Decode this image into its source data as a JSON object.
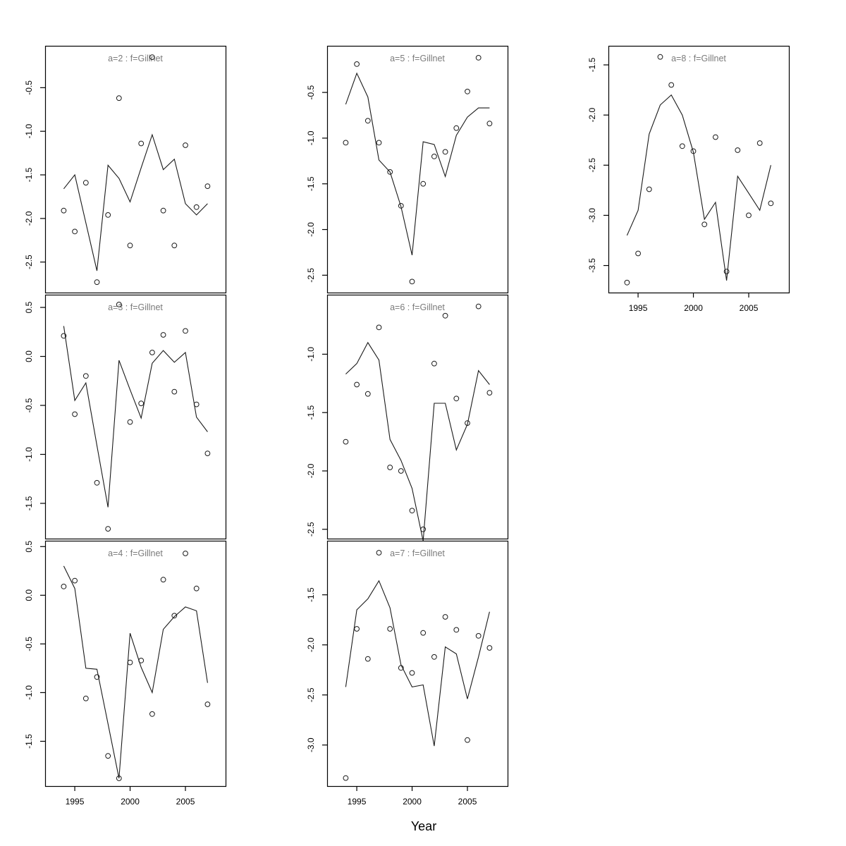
{
  "figure": {
    "background": "#ffffff",
    "title_color": "#7b7b7b",
    "line_color": "#1a1a1a",
    "point_color": "#1a1a1a",
    "axis_color": "#000000"
  },
  "chart_data": {
    "type": "line",
    "description": "3x3 grid of 7 panels comparing observed index (open circles) with fitted values (line) per age class for fleet Gillnet, 1994-2007",
    "xlabel": "Year",
    "x": [
      1994,
      1995,
      1996,
      1997,
      1998,
      1999,
      2000,
      2001,
      2002,
      2003,
      2004,
      2005,
      2006,
      2007
    ],
    "xticks": [
      1995,
      2000,
      2005
    ],
    "xtick_labels": [
      "1995",
      "2000",
      "2005"
    ],
    "xlim": [
      1992.32,
      2008.63
    ],
    "legend": [
      "observed (circles)",
      "fitted (line)"
    ],
    "panels": [
      {
        "id": "a2",
        "title": "a=2  :  f=Gillnet",
        "row": 0,
        "col": 0,
        "ylim": [
          -2.85,
          -0.02
        ],
        "yticks": [
          -0.5,
          -1.0,
          -1.5,
          -2.0,
          -2.5
        ],
        "show_x_axis": false,
        "observed": [
          -1.91,
          -2.15,
          -1.59,
          -2.73,
          -1.96,
          -0.62,
          -2.31,
          -1.14,
          -0.15,
          -1.91,
          -2.31,
          -1.16,
          -1.87,
          -1.63
        ],
        "fitted": [
          -1.66,
          -1.5,
          -2.05,
          -2.6,
          -1.39,
          -1.54,
          -1.81,
          -1.42,
          -1.04,
          -1.44,
          -1.32,
          -1.83,
          -1.96,
          -1.83
        ]
      },
      {
        "id": "a3",
        "title": "a=3  :  f=Gillnet",
        "row": 1,
        "col": 0,
        "ylim": [
          -1.86,
          0.63
        ],
        "yticks": [
          0.5,
          0.0,
          -0.5,
          -1.0,
          -1.5
        ],
        "show_x_axis": false,
        "observed": [
          0.21,
          -0.59,
          -0.2,
          -1.29,
          -1.76,
          0.53,
          -0.67,
          -0.48,
          0.04,
          0.22,
          -0.36,
          0.26,
          -0.49,
          -0.99
        ],
        "fitted": [
          0.31,
          -0.45,
          -0.27,
          -0.91,
          -1.54,
          -0.04,
          -0.34,
          -0.63,
          -0.07,
          0.06,
          -0.06,
          0.04,
          -0.62,
          -0.77
        ]
      },
      {
        "id": "a4",
        "title": "a=4  :  f=Gillnet",
        "row": 2,
        "col": 0,
        "ylim": [
          -1.96,
          0.56
        ],
        "yticks": [
          0.5,
          0.0,
          -0.5,
          -1.0,
          -1.5
        ],
        "show_x_axis": true,
        "observed": [
          0.09,
          0.15,
          -1.06,
          -0.84,
          -1.65,
          -1.88,
          -0.69,
          -0.67,
          -1.22,
          0.16,
          -0.21,
          0.43,
          0.07,
          -1.12
        ],
        "fitted": [
          0.3,
          0.07,
          -0.75,
          -0.76,
          -1.32,
          -1.88,
          -0.39,
          -0.74,
          -1.0,
          -0.35,
          -0.22,
          -0.12,
          -0.16,
          -0.9
        ]
      },
      {
        "id": "a5",
        "title": "a=5  :  f=Gillnet",
        "row": 0,
        "col": 1,
        "ylim": [
          -2.69,
          0.01
        ],
        "yticks": [
          -0.5,
          -1.0,
          -1.5,
          -2.0,
          -2.5
        ],
        "show_x_axis": false,
        "observed": [
          -1.05,
          -0.19,
          -0.81,
          -1.05,
          -1.37,
          -1.74,
          -2.57,
          -1.5,
          -1.2,
          -1.15,
          -0.89,
          -0.49,
          -0.12,
          -0.84
        ],
        "fitted": [
          -0.63,
          -0.29,
          -0.55,
          -1.24,
          -1.37,
          -1.75,
          -2.28,
          -1.04,
          -1.07,
          -1.42,
          -0.97,
          -0.77,
          -0.67,
          -0.67
        ]
      },
      {
        "id": "a6",
        "title": "a=6  :  f=Gillnet",
        "row": 1,
        "col": 1,
        "ylim": [
          -2.58,
          -0.49
        ],
        "yticks": [
          -1.0,
          -1.5,
          -2.0,
          -2.5
        ],
        "show_x_axis": false,
        "observed": [
          -1.75,
          -1.26,
          -1.34,
          -0.77,
          -1.97,
          -2.0,
          -2.34,
          -2.5,
          -1.08,
          -0.67,
          -1.38,
          -1.59,
          -0.59,
          -1.33
        ],
        "fitted": [
          -1.17,
          -1.08,
          -0.9,
          -1.05,
          -1.73,
          -1.91,
          -2.15,
          -2.6,
          -1.42,
          -1.42,
          -1.82,
          -1.6,
          -1.14,
          -1.26
        ]
      },
      {
        "id": "a7",
        "title": "a=7  :  f=Gillnet",
        "row": 2,
        "col": 1,
        "ylim": [
          -3.41,
          -0.96
        ],
        "yticks": [
          -1.5,
          -2.0,
          -2.5,
          -3.0
        ],
        "show_x_axis": true,
        "observed": [
          -3.33,
          -1.84,
          -2.14,
          -1.08,
          -1.84,
          -2.23,
          -2.28,
          -1.88,
          -2.12,
          -1.72,
          -1.85,
          -2.95,
          -1.91,
          -2.03
        ],
        "fitted": [
          -2.42,
          -1.65,
          -1.54,
          -1.36,
          -1.63,
          -2.2,
          -2.42,
          -2.4,
          -3.01,
          -2.02,
          -2.09,
          -2.54,
          -2.12,
          -1.67
        ]
      },
      {
        "id": "a8",
        "title": "a=8  :  f=Gillnet",
        "row": 0,
        "col": 2,
        "ylim": [
          -3.77,
          -1.31
        ],
        "yticks": [
          -1.5,
          -2.0,
          -2.5,
          -3.0,
          -3.5
        ],
        "show_x_axis": true,
        "observed": [
          -3.67,
          -3.38,
          -2.74,
          -1.42,
          -1.7,
          -2.31,
          -2.36,
          -3.09,
          -2.22,
          -3.56,
          -2.35,
          -3.0,
          -2.28,
          -2.88
        ],
        "fitted": [
          -3.2,
          -2.95,
          -2.19,
          -1.9,
          -1.8,
          -2.0,
          -2.37,
          -3.04,
          -2.87,
          -3.65,
          -2.61,
          -2.78,
          -2.95,
          -2.5
        ]
      }
    ]
  }
}
